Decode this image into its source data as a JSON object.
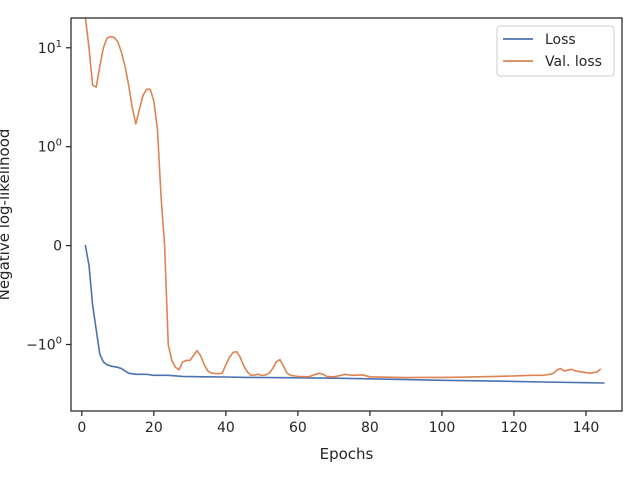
{
  "chart_data": {
    "type": "line",
    "xlabel": "Epochs",
    "ylabel": "Negative log-likelihood",
    "yscale": "symlog",
    "xlim": [
      -3,
      150
    ],
    "ylim": [
      -4.7,
      20
    ],
    "grid": false,
    "legend_position": "top-right",
    "x_ticks": [
      {
        "value": 0,
        "label": "0"
      },
      {
        "value": 20,
        "label": "20"
      },
      {
        "value": 40,
        "label": "40"
      },
      {
        "value": 60,
        "label": "60"
      },
      {
        "value": 80,
        "label": "80"
      },
      {
        "value": 100,
        "label": "100"
      },
      {
        "value": 120,
        "label": "120"
      },
      {
        "value": 140,
        "label": "140"
      }
    ],
    "y_ticks": [
      {
        "value": 10,
        "base": "10",
        "exp": "1"
      },
      {
        "value": 1,
        "base": "10",
        "exp": "0"
      },
      {
        "value": 0,
        "base": "0",
        "exp": ""
      },
      {
        "value": -1,
        "base": "−10",
        "exp": "0"
      }
    ],
    "series": [
      {
        "name": "Loss",
        "color": "#4c72b0",
        "points": [
          [
            1,
            0.0
          ],
          [
            2,
            -0.2
          ],
          [
            3,
            -0.6
          ],
          [
            4,
            -0.85
          ],
          [
            5,
            -1.25
          ],
          [
            6,
            -1.5
          ],
          [
            7,
            -1.6
          ],
          [
            8,
            -1.65
          ],
          [
            10,
            -1.7
          ],
          [
            11,
            -1.75
          ],
          [
            12,
            -1.85
          ],
          [
            13,
            -1.95
          ],
          [
            15,
            -2.0
          ],
          [
            18,
            -2.0
          ],
          [
            20,
            -2.05
          ],
          [
            24,
            -2.05
          ],
          [
            28,
            -2.1
          ],
          [
            34,
            -2.12
          ],
          [
            40,
            -2.13
          ],
          [
            46,
            -2.15
          ],
          [
            52,
            -2.16
          ],
          [
            60,
            -2.17
          ],
          [
            70,
            -2.19
          ],
          [
            80,
            -2.22
          ],
          [
            90,
            -2.26
          ],
          [
            100,
            -2.3
          ],
          [
            110,
            -2.33
          ],
          [
            120,
            -2.36
          ],
          [
            130,
            -2.4
          ],
          [
            140,
            -2.43
          ],
          [
            145,
            -2.45
          ]
        ]
      },
      {
        "name": "Val. loss",
        "color": "#dd8452",
        "points": [
          [
            1,
            20.0
          ],
          [
            2,
            10.0
          ],
          [
            3,
            4.2
          ],
          [
            4,
            4.0
          ],
          [
            5,
            6.5
          ],
          [
            6,
            10.0
          ],
          [
            7,
            12.5
          ],
          [
            8,
            13.0
          ],
          [
            9,
            12.7
          ],
          [
            10,
            11.5
          ],
          [
            11,
            9.0
          ],
          [
            12,
            6.5
          ],
          [
            13,
            4.2
          ],
          [
            14,
            2.5
          ],
          [
            15,
            1.7
          ],
          [
            16,
            2.4
          ],
          [
            17,
            3.3
          ],
          [
            18,
            3.8
          ],
          [
            19,
            3.8
          ],
          [
            20,
            2.9
          ],
          [
            21,
            1.5
          ],
          [
            22,
            0.5
          ],
          [
            23,
            0.0
          ],
          [
            24,
            -1.0
          ],
          [
            25,
            -1.45
          ],
          [
            26,
            -1.7
          ],
          [
            27,
            -1.8
          ],
          [
            28,
            -1.5
          ],
          [
            29,
            -1.45
          ],
          [
            30,
            -1.45
          ],
          [
            31,
            -1.3
          ],
          [
            32,
            -1.15
          ],
          [
            33,
            -1.3
          ],
          [
            34,
            -1.6
          ],
          [
            35,
            -1.85
          ],
          [
            36,
            -1.95
          ],
          [
            37,
            -1.96
          ],
          [
            38,
            -1.97
          ],
          [
            39,
            -1.95
          ],
          [
            40,
            -1.6
          ],
          [
            41,
            -1.35
          ],
          [
            42,
            -1.2
          ],
          [
            43,
            -1.18
          ],
          [
            44,
            -1.35
          ],
          [
            45,
            -1.65
          ],
          [
            46,
            -1.9
          ],
          [
            47,
            -2.05
          ],
          [
            48,
            -2.03
          ],
          [
            49,
            -2.0
          ],
          [
            50,
            -2.05
          ],
          [
            51,
            -2.03
          ],
          [
            52,
            -1.95
          ],
          [
            53,
            -1.75
          ],
          [
            54,
            -1.5
          ],
          [
            55,
            -1.42
          ],
          [
            56,
            -1.65
          ],
          [
            57,
            -1.95
          ],
          [
            58,
            -2.05
          ],
          [
            60,
            -2.1
          ],
          [
            63,
            -2.12
          ],
          [
            65,
            -2.0
          ],
          [
            66,
            -1.95
          ],
          [
            67,
            -2.0
          ],
          [
            68,
            -2.1
          ],
          [
            70,
            -2.12
          ],
          [
            72,
            -2.05
          ],
          [
            73,
            -2.0
          ],
          [
            75,
            -2.05
          ],
          [
            78,
            -2.03
          ],
          [
            80,
            -2.12
          ],
          [
            85,
            -2.14
          ],
          [
            90,
            -2.16
          ],
          [
            95,
            -2.15
          ],
          [
            100,
            -2.15
          ],
          [
            105,
            -2.14
          ],
          [
            110,
            -2.12
          ],
          [
            115,
            -2.1
          ],
          [
            120,
            -2.08
          ],
          [
            125,
            -2.05
          ],
          [
            128,
            -2.05
          ],
          [
            130,
            -2.0
          ],
          [
            131,
            -1.95
          ],
          [
            132,
            -1.8
          ],
          [
            133,
            -1.75
          ],
          [
            134,
            -1.85
          ],
          [
            136,
            -1.78
          ],
          [
            137,
            -1.85
          ],
          [
            139,
            -1.9
          ],
          [
            141,
            -1.95
          ],
          [
            143,
            -1.9
          ],
          [
            144,
            -1.78
          ]
        ]
      }
    ]
  }
}
